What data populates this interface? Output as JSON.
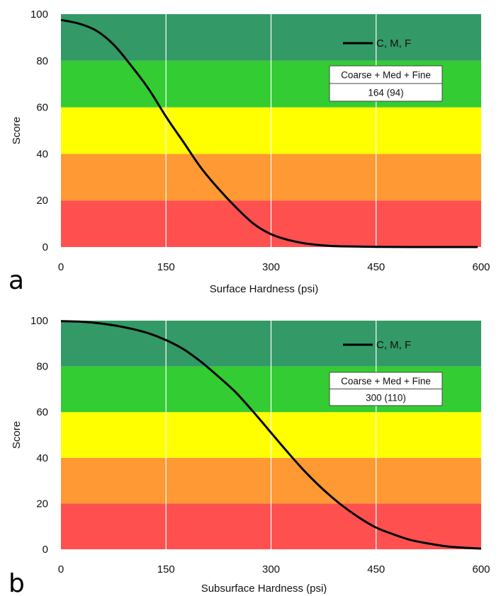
{
  "chart_data": [
    {
      "type": "line",
      "panel_label": "a",
      "xlabel": "Surface Hardness (psi)",
      "ylabel": "Score",
      "xlim": [
        0,
        600
      ],
      "ylim": [
        0,
        100
      ],
      "x_ticks": [
        "0",
        "150",
        "300",
        "450",
        "600"
      ],
      "y_ticks": [
        "0",
        "20",
        "40",
        "60",
        "80",
        "100"
      ],
      "bands": [
        {
          "from": 0,
          "to": 20,
          "color": "#ff5050"
        },
        {
          "from": 20,
          "to": 40,
          "color": "#ff9933"
        },
        {
          "from": 40,
          "to": 60,
          "color": "#ffff00"
        },
        {
          "from": 60,
          "to": 80,
          "color": "#33cc33"
        },
        {
          "from": 80,
          "to": 100,
          "color": "#339966"
        }
      ],
      "series": [
        {
          "name": "C, M, F",
          "color": "#000000",
          "x": [
            0,
            25,
            50,
            75,
            100,
            125,
            150,
            175,
            200,
            225,
            250,
            275,
            300,
            325,
            350,
            375,
            400,
            450,
            500,
            550,
            595
          ],
          "y": [
            97.5,
            96,
            93,
            87,
            78,
            68,
            56,
            45,
            34,
            25,
            17,
            10,
            5.5,
            3,
            1.5,
            0.7,
            0.3,
            0.1,
            0,
            0,
            0
          ]
        }
      ],
      "legend": {
        "entry": "C, M, F"
      },
      "info_box": {
        "header": "Coarse + Med + Fine",
        "value": "164 (94)"
      }
    },
    {
      "type": "line",
      "panel_label": "b",
      "xlabel": "Subsurface Hardness (psi)",
      "ylabel": "Score",
      "xlim": [
        0,
        600
      ],
      "ylim": [
        0,
        100
      ],
      "x_ticks": [
        "0",
        "150",
        "300",
        "450",
        "600"
      ],
      "y_ticks": [
        "0",
        "20",
        "40",
        "60",
        "80",
        "100"
      ],
      "bands": [
        {
          "from": 0,
          "to": 20,
          "color": "#ff5050"
        },
        {
          "from": 20,
          "to": 40,
          "color": "#ff9933"
        },
        {
          "from": 40,
          "to": 60,
          "color": "#ffff00"
        },
        {
          "from": 60,
          "to": 80,
          "color": "#33cc33"
        },
        {
          "from": 80,
          "to": 100,
          "color": "#339966"
        }
      ],
      "series": [
        {
          "name": "C, M, F",
          "color": "#000000",
          "x": [
            0,
            25,
            50,
            75,
            100,
            125,
            150,
            175,
            200,
            225,
            250,
            275,
            300,
            325,
            350,
            375,
            400,
            425,
            450,
            475,
            500,
            525,
            550,
            575,
            600
          ],
          "y": [
            99.8,
            99.6,
            99,
            98,
            96.5,
            94.5,
            91.5,
            87.5,
            82,
            75.5,
            68.5,
            60,
            51,
            42,
            33.5,
            26,
            19.5,
            14,
            9.5,
            6.5,
            4,
            2.5,
            1.3,
            0.7,
            0.3
          ]
        }
      ],
      "legend": {
        "entry": "C, M, F"
      },
      "info_box": {
        "header": "Coarse + Med + Fine",
        "value": "300 (110)"
      }
    }
  ]
}
